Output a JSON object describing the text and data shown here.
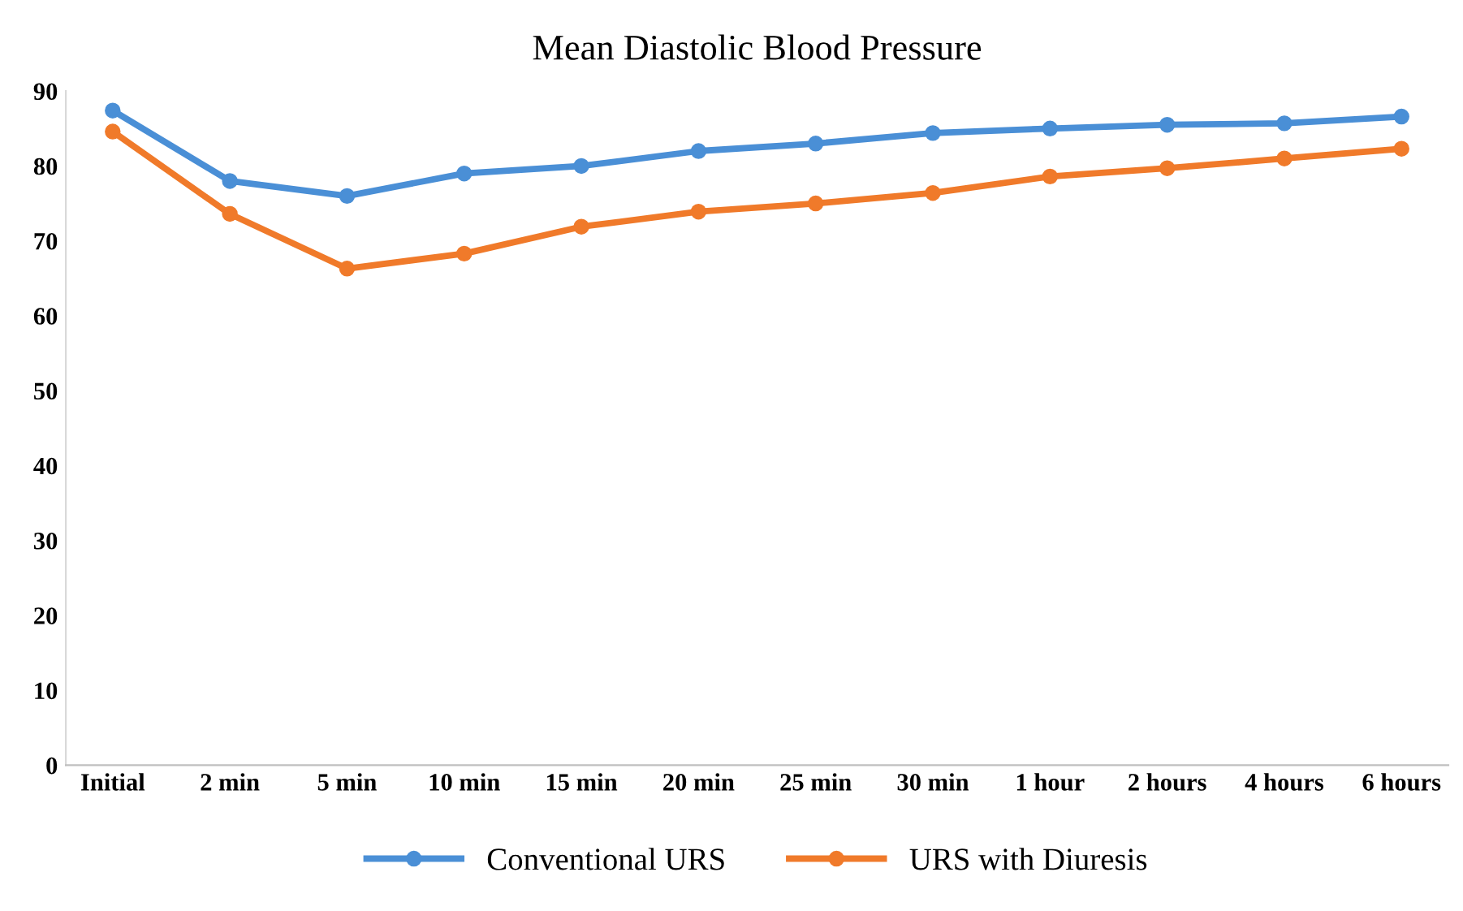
{
  "chart_data": {
    "type": "line",
    "title": "Mean Diastolic Blood Pressure",
    "categories": [
      "Initial",
      "2 min",
      "5 min",
      "10 min",
      "15 min",
      "20 min",
      "25 min",
      "30 min",
      "1 hour",
      "2 hours",
      "4 hours",
      "6 hours"
    ],
    "series": [
      {
        "name": "Conventional URS",
        "color": "#4a8fd6",
        "values": [
          87.4,
          78,
          76,
          79,
          80,
          82,
          83,
          84.4,
          85,
          85.5,
          85.7,
          86.6
        ]
      },
      {
        "name": "URS with Diuresis",
        "color": "#f07a2a",
        "values": [
          84.6,
          73.6,
          66.3,
          68.3,
          71.9,
          73.9,
          75,
          76.4,
          78.6,
          79.7,
          81,
          82.3
        ]
      }
    ],
    "ylim": [
      0,
      90
    ],
    "yticks": [
      0,
      10,
      20,
      30,
      40,
      50,
      60,
      70,
      80,
      90
    ],
    "grid": false,
    "legend": "bottom",
    "marker": "circle",
    "line_style": "solid"
  }
}
